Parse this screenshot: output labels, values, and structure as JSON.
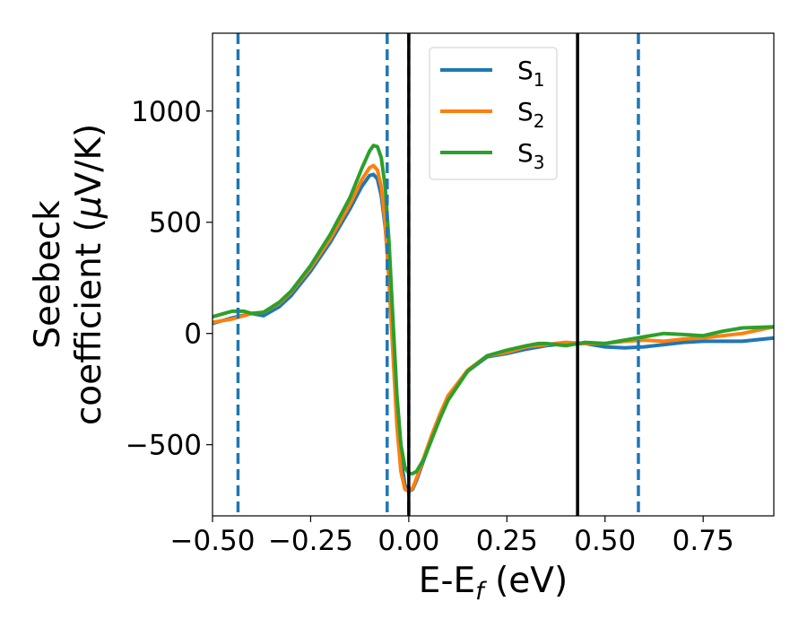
{
  "chart_data": {
    "type": "line",
    "xlabel_main": "E-E",
    "xlabel_sub": "f",
    "xlabel_unit": " (eV)",
    "ylabel_line1": "Seebeck",
    "ylabel_line2_pre": "coefficient  (",
    "ylabel_line2_mu": "μ",
    "ylabel_line2_post": "V/K)",
    "xlim": [
      -0.5,
      0.93
    ],
    "ylim": [
      -820,
      1350
    ],
    "x_ticks": [
      -0.5,
      -0.25,
      0.0,
      0.25,
      0.5,
      0.75
    ],
    "x_tick_labels": [
      "−0.50",
      "−0.25",
      "0.00",
      "0.25",
      "0.50",
      "0.75"
    ],
    "y_ticks": [
      -500,
      0,
      500,
      1000
    ],
    "y_tick_labels": [
      "−500",
      "0",
      "500",
      "1000"
    ],
    "grid": false,
    "legend_position": "top",
    "vlines": [
      {
        "x": -0.435,
        "style": "dashed",
        "color": "#1f77b4"
      },
      {
        "x": -0.055,
        "style": "dashed",
        "color": "#1f77b4"
      },
      {
        "x": 0.0,
        "style": "dashed",
        "color": "#1f77b4"
      },
      {
        "x": 0.0,
        "style": "solid",
        "color": "#000000"
      },
      {
        "x": 0.43,
        "style": "solid",
        "color": "#000000"
      },
      {
        "x": 0.585,
        "style": "dashed",
        "color": "#1f77b4"
      }
    ],
    "series": [
      {
        "name": "S",
        "subscript": "1",
        "color": "#1f77b4",
        "x": [
          -0.5,
          -0.45,
          -0.4,
          -0.37,
          -0.33,
          -0.3,
          -0.25,
          -0.2,
          -0.15,
          -0.12,
          -0.1,
          -0.09,
          -0.08,
          -0.07,
          -0.06,
          -0.05,
          -0.04,
          -0.03,
          -0.02,
          -0.01,
          0.0,
          0.01,
          0.02,
          0.04,
          0.06,
          0.08,
          0.1,
          0.15,
          0.2,
          0.25,
          0.3,
          0.35,
          0.4,
          0.45,
          0.5,
          0.55,
          0.6,
          0.65,
          0.7,
          0.75,
          0.8,
          0.85,
          0.93
        ],
        "y": [
          45,
          70,
          90,
          80,
          120,
          170,
          280,
          410,
          560,
          660,
          710,
          715,
          695,
          620,
          480,
          250,
          -50,
          -330,
          -560,
          -680,
          -710,
          -700,
          -660,
          -560,
          -460,
          -370,
          -290,
          -170,
          -105,
          -90,
          -70,
          -55,
          -45,
          -45,
          -60,
          -65,
          -60,
          -50,
          -40,
          -35,
          -35,
          -35,
          -20
        ]
      },
      {
        "name": "S",
        "subscript": "2",
        "color": "#ff7f0e",
        "x": [
          -0.5,
          -0.45,
          -0.4,
          -0.37,
          -0.33,
          -0.3,
          -0.25,
          -0.2,
          -0.15,
          -0.12,
          -0.1,
          -0.09,
          -0.08,
          -0.07,
          -0.06,
          -0.05,
          -0.04,
          -0.03,
          -0.02,
          -0.01,
          0.0,
          0.01,
          0.02,
          0.04,
          0.06,
          0.08,
          0.1,
          0.15,
          0.2,
          0.25,
          0.3,
          0.35,
          0.4,
          0.45,
          0.5,
          0.55,
          0.6,
          0.65,
          0.7,
          0.75,
          0.8,
          0.85,
          0.93
        ],
        "y": [
          50,
          65,
          90,
          95,
          135,
          185,
          295,
          425,
          580,
          690,
          745,
          755,
          735,
          660,
          500,
          220,
          -100,
          -420,
          -620,
          -700,
          -710,
          -695,
          -650,
          -550,
          -450,
          -360,
          -280,
          -165,
          -100,
          -85,
          -60,
          -50,
          -40,
          -45,
          -45,
          -35,
          -30,
          -35,
          -25,
          -20,
          -10,
          0,
          30
        ]
      },
      {
        "name": "S",
        "subscript": "3",
        "color": "#2ca02c",
        "x": [
          -0.5,
          -0.45,
          -0.42,
          -0.4,
          -0.37,
          -0.33,
          -0.3,
          -0.25,
          -0.2,
          -0.15,
          -0.12,
          -0.1,
          -0.09,
          -0.08,
          -0.07,
          -0.06,
          -0.05,
          -0.04,
          -0.03,
          -0.02,
          -0.01,
          0.0,
          0.01,
          0.02,
          0.04,
          0.06,
          0.08,
          0.1,
          0.15,
          0.2,
          0.25,
          0.3,
          0.33,
          0.35,
          0.4,
          0.45,
          0.5,
          0.55,
          0.6,
          0.65,
          0.7,
          0.75,
          0.8,
          0.85,
          0.93
        ],
        "y": [
          75,
          100,
          100,
          90,
          95,
          140,
          190,
          305,
          445,
          610,
          740,
          820,
          845,
          840,
          790,
          660,
          400,
          50,
          -280,
          -500,
          -600,
          -630,
          -630,
          -620,
          -560,
          -470,
          -380,
          -300,
          -170,
          -100,
          -75,
          -55,
          -45,
          -45,
          -55,
          -40,
          -45,
          -30,
          -15,
          0,
          -5,
          -10,
          10,
          25,
          30
        ]
      }
    ]
  }
}
